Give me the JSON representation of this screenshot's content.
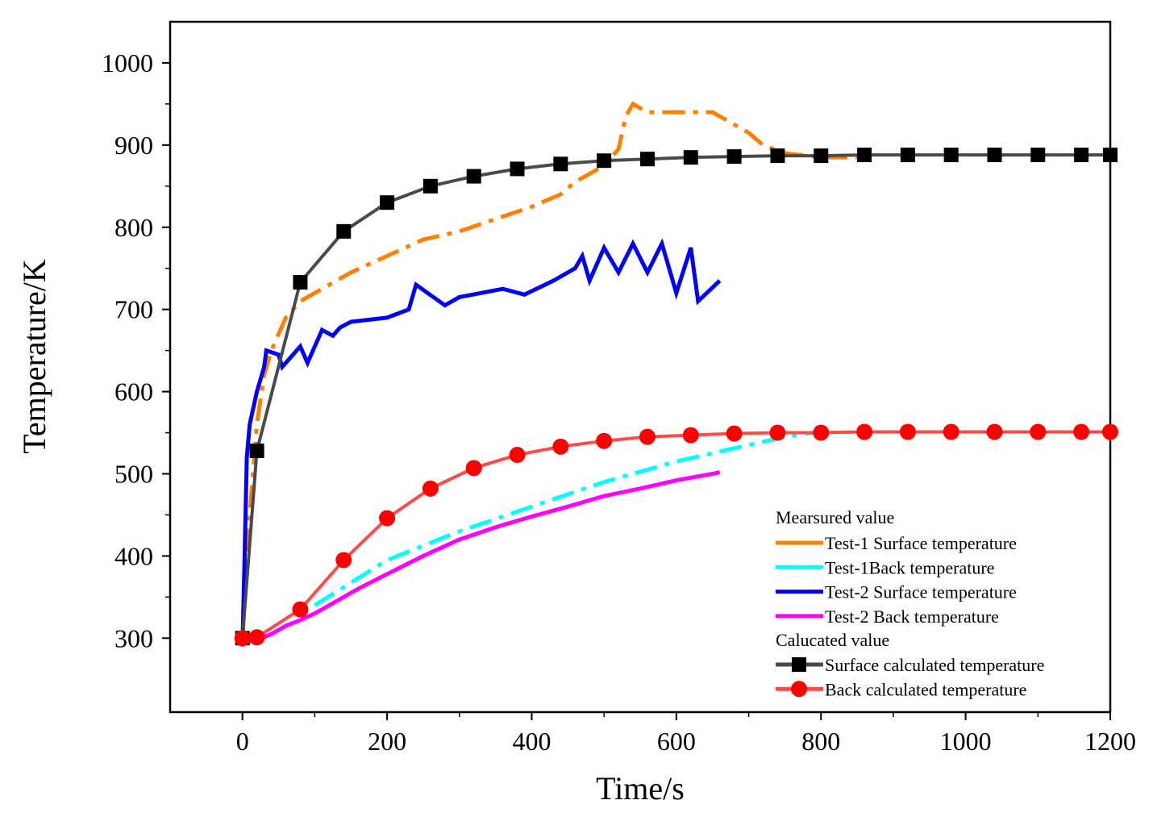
{
  "chart_data": {
    "type": "line",
    "title": "",
    "xlabel": "Time/s",
    "ylabel": "Temperature/K",
    "xlim": [
      -100,
      1200
    ],
    "ylim": [
      210,
      1050
    ],
    "xticks": [
      0,
      200,
      400,
      600,
      800,
      1000,
      1200
    ],
    "yticks": [
      300,
      400,
      500,
      600,
      700,
      800,
      900,
      1000
    ],
    "xtick_labels": [
      "0",
      "200",
      "400",
      "600",
      "800",
      "1000",
      "1200"
    ],
    "ytick_labels": [
      "300",
      "400",
      "500",
      "600",
      "700",
      "800",
      "900",
      "1000"
    ],
    "grid": false,
    "legend_position": "bottom-right",
    "legend": {
      "measured_header": "Mearsured value",
      "calculated_header": "Calucated value"
    },
    "series": [
      {
        "name": "Test-1 Surface temperature",
        "group": "measured",
        "color": "#ff8000",
        "style": "dash-dot",
        "marker": "none",
        "x": [
          0,
          5,
          10,
          20,
          30,
          40,
          50,
          60,
          80,
          100,
          150,
          200,
          250,
          300,
          350,
          400,
          440,
          460,
          480,
          500,
          520,
          530,
          540,
          560,
          600,
          650,
          700,
          720,
          750,
          800,
          850
        ],
        "y": [
          300,
          370,
          450,
          560,
          620,
          650,
          670,
          690,
          710,
          720,
          745,
          765,
          785,
          795,
          810,
          825,
          840,
          855,
          865,
          875,
          895,
          935,
          950,
          940,
          940,
          940,
          915,
          900,
          890,
          885,
          885
        ]
      },
      {
        "name": "Test-1Back temperature",
        "group": "measured",
        "color": "#00ffff",
        "style": "dash-dot",
        "marker": "none",
        "x": [
          100,
          200,
          300,
          400,
          500,
          600,
          700,
          750,
          790
        ],
        "y": [
          340,
          395,
          430,
          460,
          490,
          515,
          535,
          545,
          550
        ]
      },
      {
        "name": "Test-2 Surface temperature",
        "group": "measured",
        "color": "#0000ff",
        "style": "solid",
        "marker": "none",
        "x": [
          0,
          3,
          6,
          10,
          20,
          30,
          33,
          50,
          55,
          70,
          80,
          90,
          95,
          110,
          125,
          135,
          150,
          200,
          230,
          240,
          280,
          300,
          330,
          360,
          390,
          430,
          460,
          470,
          480,
          500,
          520,
          540,
          560,
          580,
          600,
          620,
          630,
          660
        ],
        "y": [
          290,
          400,
          520,
          560,
          600,
          630,
          650,
          645,
          630,
          645,
          655,
          635,
          645,
          675,
          668,
          678,
          685,
          690,
          700,
          730,
          705,
          715,
          720,
          725,
          718,
          735,
          750,
          765,
          735,
          775,
          745,
          780,
          745,
          780,
          720,
          775,
          710,
          735
        ]
      },
      {
        "name": "Test-2 Back temperature",
        "group": "measured",
        "color": "#ff00ff",
        "style": "solid",
        "marker": "none",
        "x": [
          0,
          20,
          40,
          60,
          80,
          100,
          130,
          160,
          200,
          250,
          300,
          350,
          400,
          450,
          500,
          550,
          600,
          650,
          660
        ],
        "y": [
          295,
          298,
          305,
          315,
          322,
          330,
          345,
          360,
          378,
          400,
          420,
          435,
          448,
          460,
          473,
          482,
          492,
          500,
          502
        ]
      },
      {
        "name": "Surface calculated temperature",
        "group": "calculated",
        "color": "#4a4a4a",
        "style": "solid",
        "marker": "square",
        "marker_color": "#000000",
        "x": [
          0,
          20,
          80,
          140,
          200,
          260,
          320,
          380,
          440,
          500,
          560,
          620,
          680,
          740,
          800,
          860,
          920,
          980,
          1040,
          1100,
          1160,
          1200
        ],
        "y": [
          300,
          528,
          733,
          795,
          830,
          850,
          862,
          871,
          877,
          881,
          883,
          885,
          886,
          887,
          887,
          888,
          888,
          888,
          888,
          888,
          888,
          888
        ]
      },
      {
        "name": "Back calculated temperature",
        "group": "calculated",
        "color": "#ff4a4a",
        "style": "solid",
        "marker": "circle",
        "marker_color": "#ff0000",
        "x": [
          0,
          20,
          80,
          140,
          200,
          260,
          320,
          380,
          440,
          500,
          560,
          620,
          680,
          740,
          800,
          860,
          920,
          980,
          1040,
          1100,
          1160,
          1200
        ],
        "y": [
          300,
          301,
          335,
          395,
          446,
          482,
          507,
          523,
          533,
          540,
          545,
          547,
          549,
          550,
          550,
          551,
          551,
          551,
          551,
          551,
          551,
          551
        ]
      }
    ]
  }
}
